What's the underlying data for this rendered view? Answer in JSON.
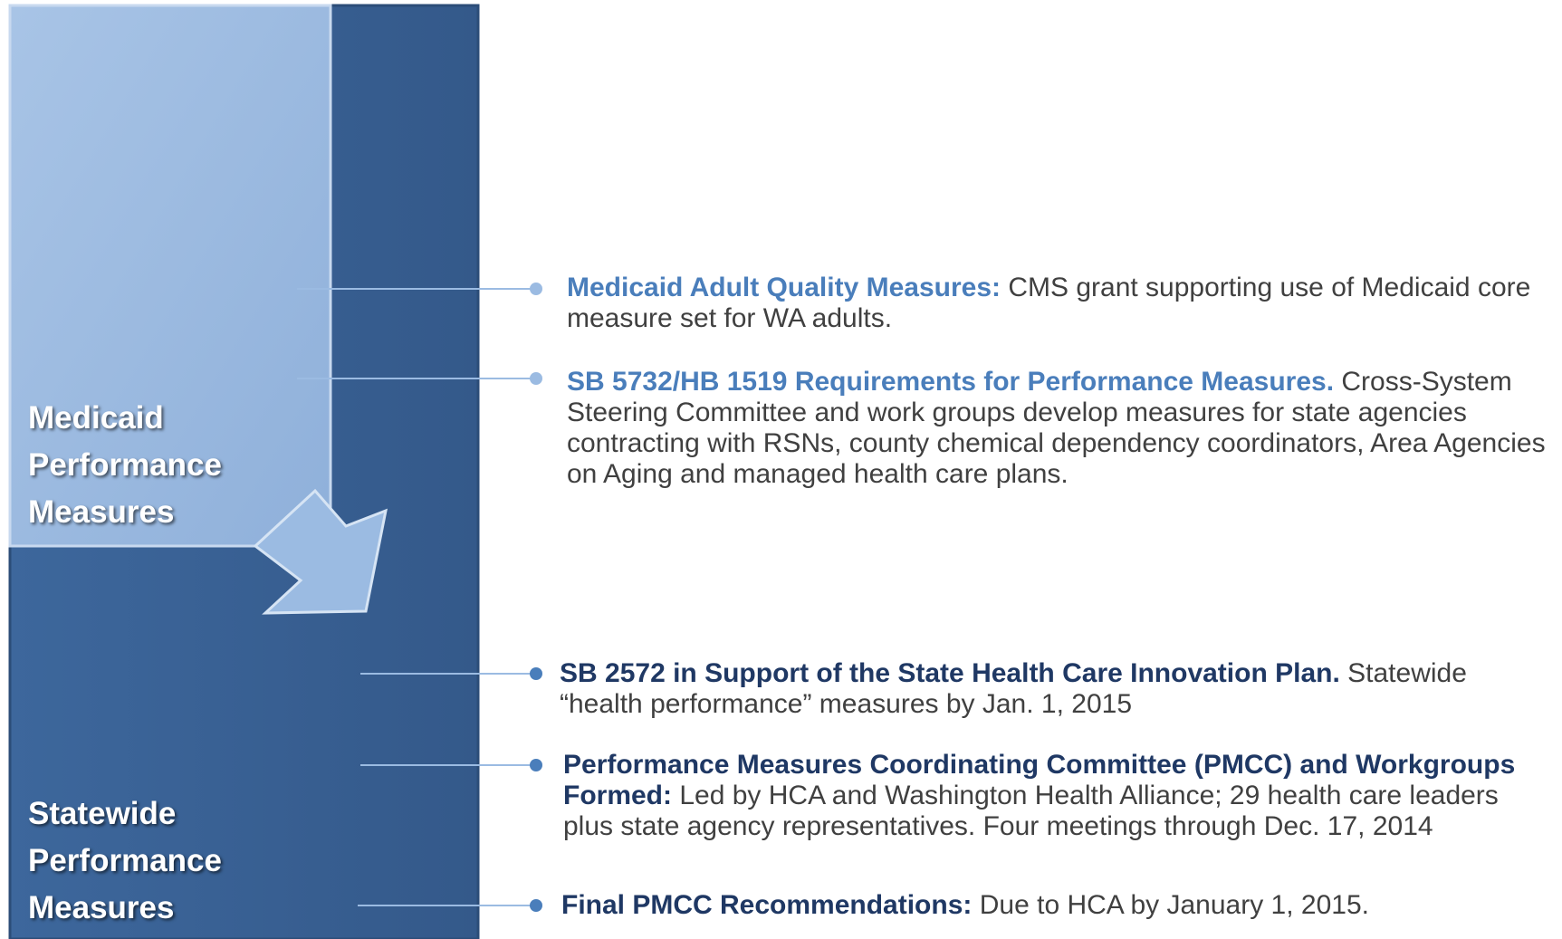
{
  "left_labels": [
    "Medicaid Performance Measures",
    "Statewide Performance Measures"
  ],
  "items": [
    {
      "heading": "Medicaid Adult Quality Measures:",
      "body": "CMS grant supporting use of Medicaid core measure set for WA adults."
    },
    {
      "heading": "SB 5732/HB 1519 Requirements for Performance Measures.",
      "body": "Cross-System Steering Committee and work groups develop measures for state agencies contracting with RSNs, county chemical dependency coordinators, Area Agencies on Aging and managed health care plans."
    },
    {
      "heading": "SB 2572 in Support of the State Health Care Innovation Plan.",
      "body": "Statewide “health performance” measures by Jan. 1, 2015"
    },
    {
      "heading": "Performance Measures Coordinating Committee (PMCC) and Workgroups Formed:",
      "body": "Led by HCA and Washington Health Alliance; 29 health care leaders plus state agency representatives. Four meetings through Dec. 17, 2014"
    },
    {
      "heading": "Final PMCC Recommendations:",
      "body": "Due to HCA by January 1, 2015."
    }
  ]
}
